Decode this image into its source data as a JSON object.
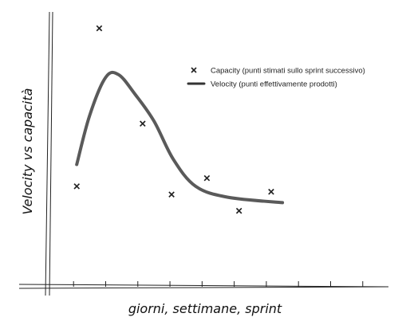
{
  "chart_data": {
    "type": "line",
    "xlabel": "giorni, settimane, sprint",
    "ylabel": "Velocity vs capacità",
    "legend_position": "top-right",
    "grid": false,
    "series": [
      {
        "name": "Capacity (punti stimati sullo sprint successivo)",
        "kind": "scatter",
        "marker": "x",
        "points": [
          {
            "x": 0.1,
            "y": 0.36
          },
          {
            "x": 0.8,
            "y": 0.94
          },
          {
            "x": 2.15,
            "y": 0.59
          },
          {
            "x": 3.05,
            "y": 0.33
          },
          {
            "x": 4.15,
            "y": 0.39
          },
          {
            "x": 5.15,
            "y": 0.27
          },
          {
            "x": 6.15,
            "y": 0.34
          }
        ]
      },
      {
        "name": "Velocity (punti effettivamente prodotti)",
        "kind": "line",
        "points": [
          {
            "x": 0.1,
            "y": 0.44
          },
          {
            "x": 0.5,
            "y": 0.62
          },
          {
            "x": 1.0,
            "y": 0.76
          },
          {
            "x": 1.4,
            "y": 0.77
          },
          {
            "x": 1.9,
            "y": 0.7
          },
          {
            "x": 2.5,
            "y": 0.6
          },
          {
            "x": 3.1,
            "y": 0.46
          },
          {
            "x": 3.8,
            "y": 0.36
          },
          {
            "x": 4.8,
            "y": 0.32
          },
          {
            "x": 6.5,
            "y": 0.3
          }
        ]
      }
    ],
    "x_ticks": [
      0,
      1,
      2,
      3,
      4,
      5,
      6,
      7,
      8,
      9
    ],
    "xlim": [
      -0.75,
      9.8
    ],
    "ylim": [
      0,
      1
    ],
    "colors": {
      "line": "#5a5a5a",
      "marker": "#222222",
      "axis": "#222222"
    }
  }
}
